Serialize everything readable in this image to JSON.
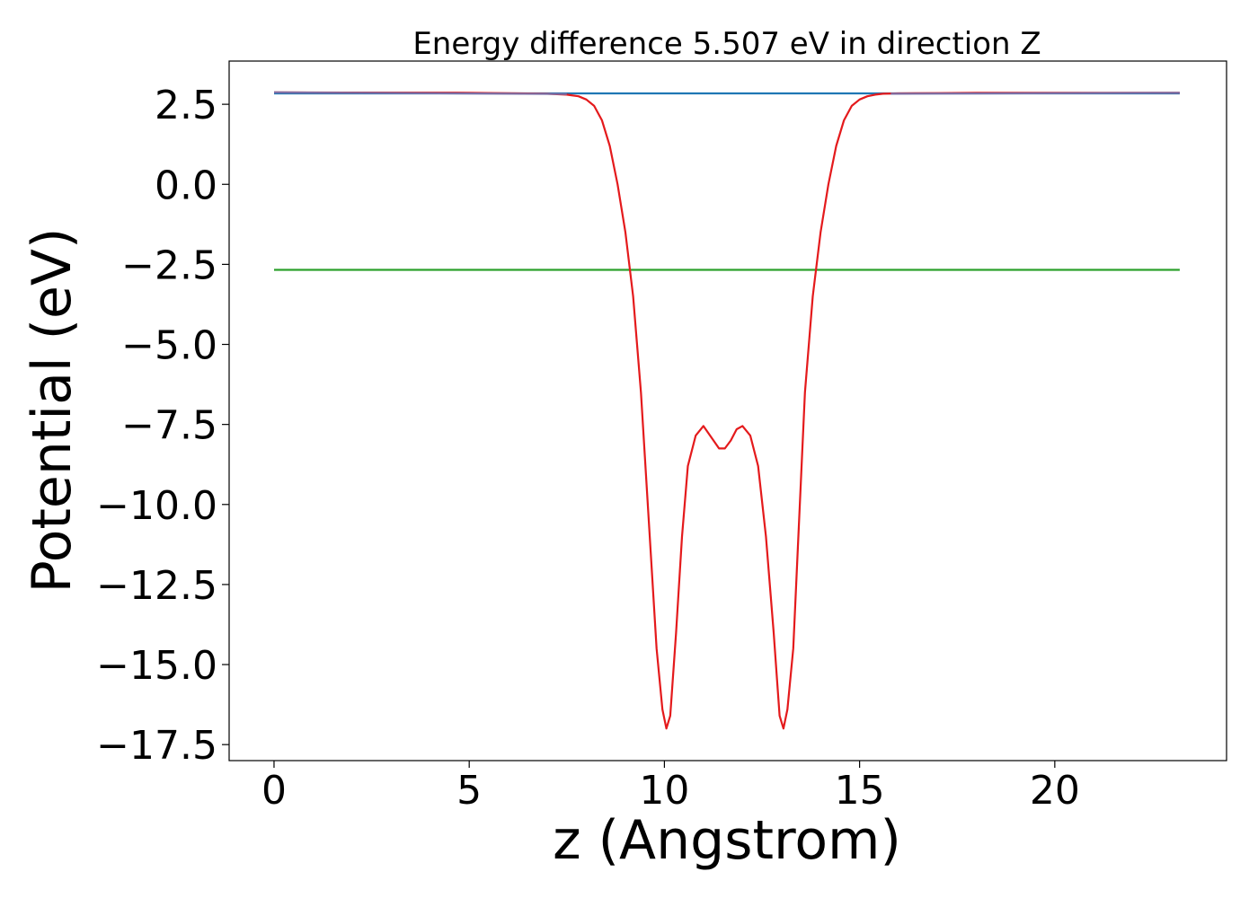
{
  "chart_data": {
    "type": "line",
    "title": "Energy difference 5.507 eV in direction Z",
    "xlabel": "z (Angstrom)",
    "ylabel": "Potential (eV)",
    "xlim": [
      -1.15,
      24.4
    ],
    "ylim": [
      -18.0,
      3.85
    ],
    "xticks": [
      0,
      5,
      10,
      15,
      20
    ],
    "xtick_labels": [
      "0",
      "5",
      "10",
      "15",
      "20"
    ],
    "yticks": [
      2.5,
      0.0,
      -2.5,
      -5.0,
      -7.5,
      -10.0,
      -12.5,
      -15.0,
      -17.5
    ],
    "ytick_labels": [
      "2.5",
      "0.0",
      "−2.5",
      "−5.0",
      "−7.5",
      "−10.0",
      "−12.5",
      "−15.0",
      "−17.5"
    ],
    "grid": false,
    "legend": "none",
    "series": [
      {
        "color": "#1f77b4",
        "x": [
          0.0,
          23.2
        ],
        "y": [
          2.84,
          2.84
        ]
      },
      {
        "color": "#2ca02c",
        "x": [
          0.0,
          23.2
        ],
        "y": [
          -2.67,
          -2.67
        ]
      },
      {
        "color": "#e41a1c",
        "x": [
          0.0,
          5.0,
          7.0,
          7.5,
          7.8,
          8.0,
          8.2,
          8.4,
          8.6,
          8.8,
          9.0,
          9.2,
          9.4,
          9.6,
          9.8,
          9.95,
          10.05,
          10.15,
          10.3,
          10.45,
          10.6,
          10.8,
          11.0,
          11.2,
          11.4,
          11.55,
          11.7,
          11.85,
          12.0,
          12.2,
          12.4,
          12.6,
          12.8,
          12.95,
          13.05,
          13.15,
          13.3,
          13.45,
          13.6,
          13.8,
          14.0,
          14.2,
          14.4,
          14.6,
          14.8,
          15.0,
          15.2,
          15.4,
          15.6,
          16.0,
          17.0,
          18.0,
          20.0,
          23.2
        ],
        "y": [
          2.87,
          2.86,
          2.83,
          2.8,
          2.75,
          2.65,
          2.45,
          2.0,
          1.2,
          0.0,
          -1.5,
          -3.5,
          -6.5,
          -10.5,
          -14.5,
          -16.4,
          -17.0,
          -16.6,
          -14.0,
          -11.0,
          -8.8,
          -7.85,
          -7.55,
          -7.9,
          -8.25,
          -8.25,
          -8.0,
          -7.65,
          -7.55,
          -7.85,
          -8.8,
          -11.0,
          -14.0,
          -16.6,
          -17.0,
          -16.4,
          -14.5,
          -10.5,
          -6.5,
          -3.5,
          -1.5,
          0.0,
          1.2,
          2.0,
          2.45,
          2.65,
          2.75,
          2.8,
          2.83,
          2.84,
          2.85,
          2.86,
          2.86,
          2.86
        ]
      },
      {
        "color": "#7b6fa6",
        "x": [
          0.0,
          7.5
        ],
        "y": [
          2.87,
          2.82
        ]
      },
      {
        "color": "#7b6fa6",
        "x": [
          15.8,
          23.2
        ],
        "y": [
          2.83,
          2.86
        ]
      }
    ]
  }
}
